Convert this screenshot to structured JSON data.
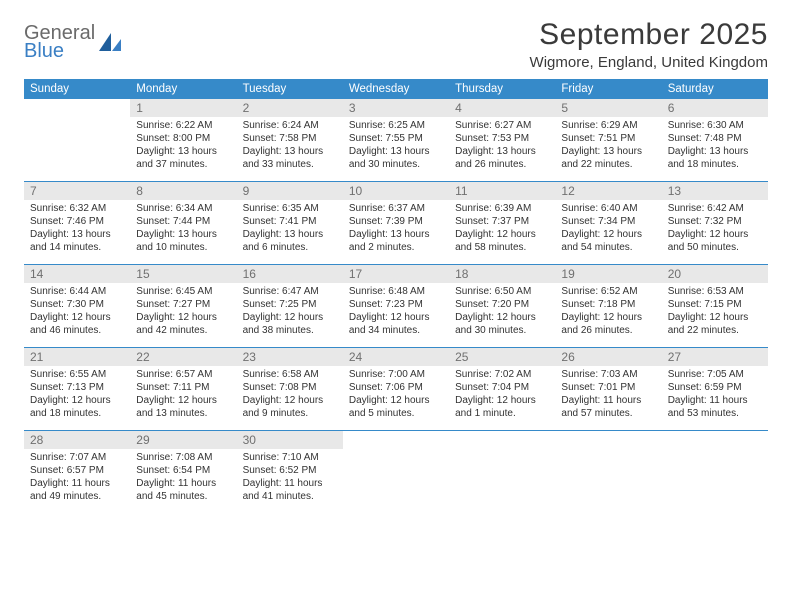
{
  "logo": {
    "line1": "General",
    "line2": "Blue"
  },
  "title": "September 2025",
  "location": "Wigmore, England, United Kingdom",
  "colors": {
    "header_bg": "#368ac9",
    "header_text": "#ffffff",
    "daynum_bg": "#e8e8e8",
    "daynum_text": "#707070",
    "row_border": "#368ac9",
    "body_text": "#333333",
    "logo_gray": "#6a6a6a",
    "logo_blue": "#3a7fc4"
  },
  "weekdays": [
    "Sunday",
    "Monday",
    "Tuesday",
    "Wednesday",
    "Thursday",
    "Friday",
    "Saturday"
  ],
  "weeks": [
    [
      null,
      {
        "n": "1",
        "sr": "Sunrise: 6:22 AM",
        "ss": "Sunset: 8:00 PM",
        "d1": "Daylight: 13 hours",
        "d2": "and 37 minutes."
      },
      {
        "n": "2",
        "sr": "Sunrise: 6:24 AM",
        "ss": "Sunset: 7:58 PM",
        "d1": "Daylight: 13 hours",
        "d2": "and 33 minutes."
      },
      {
        "n": "3",
        "sr": "Sunrise: 6:25 AM",
        "ss": "Sunset: 7:55 PM",
        "d1": "Daylight: 13 hours",
        "d2": "and 30 minutes."
      },
      {
        "n": "4",
        "sr": "Sunrise: 6:27 AM",
        "ss": "Sunset: 7:53 PM",
        "d1": "Daylight: 13 hours",
        "d2": "and 26 minutes."
      },
      {
        "n": "5",
        "sr": "Sunrise: 6:29 AM",
        "ss": "Sunset: 7:51 PM",
        "d1": "Daylight: 13 hours",
        "d2": "and 22 minutes."
      },
      {
        "n": "6",
        "sr": "Sunrise: 6:30 AM",
        "ss": "Sunset: 7:48 PM",
        "d1": "Daylight: 13 hours",
        "d2": "and 18 minutes."
      }
    ],
    [
      {
        "n": "7",
        "sr": "Sunrise: 6:32 AM",
        "ss": "Sunset: 7:46 PM",
        "d1": "Daylight: 13 hours",
        "d2": "and 14 minutes."
      },
      {
        "n": "8",
        "sr": "Sunrise: 6:34 AM",
        "ss": "Sunset: 7:44 PM",
        "d1": "Daylight: 13 hours",
        "d2": "and 10 minutes."
      },
      {
        "n": "9",
        "sr": "Sunrise: 6:35 AM",
        "ss": "Sunset: 7:41 PM",
        "d1": "Daylight: 13 hours",
        "d2": "and 6 minutes."
      },
      {
        "n": "10",
        "sr": "Sunrise: 6:37 AM",
        "ss": "Sunset: 7:39 PM",
        "d1": "Daylight: 13 hours",
        "d2": "and 2 minutes."
      },
      {
        "n": "11",
        "sr": "Sunrise: 6:39 AM",
        "ss": "Sunset: 7:37 PM",
        "d1": "Daylight: 12 hours",
        "d2": "and 58 minutes."
      },
      {
        "n": "12",
        "sr": "Sunrise: 6:40 AM",
        "ss": "Sunset: 7:34 PM",
        "d1": "Daylight: 12 hours",
        "d2": "and 54 minutes."
      },
      {
        "n": "13",
        "sr": "Sunrise: 6:42 AM",
        "ss": "Sunset: 7:32 PM",
        "d1": "Daylight: 12 hours",
        "d2": "and 50 minutes."
      }
    ],
    [
      {
        "n": "14",
        "sr": "Sunrise: 6:44 AM",
        "ss": "Sunset: 7:30 PM",
        "d1": "Daylight: 12 hours",
        "d2": "and 46 minutes."
      },
      {
        "n": "15",
        "sr": "Sunrise: 6:45 AM",
        "ss": "Sunset: 7:27 PM",
        "d1": "Daylight: 12 hours",
        "d2": "and 42 minutes."
      },
      {
        "n": "16",
        "sr": "Sunrise: 6:47 AM",
        "ss": "Sunset: 7:25 PM",
        "d1": "Daylight: 12 hours",
        "d2": "and 38 minutes."
      },
      {
        "n": "17",
        "sr": "Sunrise: 6:48 AM",
        "ss": "Sunset: 7:23 PM",
        "d1": "Daylight: 12 hours",
        "d2": "and 34 minutes."
      },
      {
        "n": "18",
        "sr": "Sunrise: 6:50 AM",
        "ss": "Sunset: 7:20 PM",
        "d1": "Daylight: 12 hours",
        "d2": "and 30 minutes."
      },
      {
        "n": "19",
        "sr": "Sunrise: 6:52 AM",
        "ss": "Sunset: 7:18 PM",
        "d1": "Daylight: 12 hours",
        "d2": "and 26 minutes."
      },
      {
        "n": "20",
        "sr": "Sunrise: 6:53 AM",
        "ss": "Sunset: 7:15 PM",
        "d1": "Daylight: 12 hours",
        "d2": "and 22 minutes."
      }
    ],
    [
      {
        "n": "21",
        "sr": "Sunrise: 6:55 AM",
        "ss": "Sunset: 7:13 PM",
        "d1": "Daylight: 12 hours",
        "d2": "and 18 minutes."
      },
      {
        "n": "22",
        "sr": "Sunrise: 6:57 AM",
        "ss": "Sunset: 7:11 PM",
        "d1": "Daylight: 12 hours",
        "d2": "and 13 minutes."
      },
      {
        "n": "23",
        "sr": "Sunrise: 6:58 AM",
        "ss": "Sunset: 7:08 PM",
        "d1": "Daylight: 12 hours",
        "d2": "and 9 minutes."
      },
      {
        "n": "24",
        "sr": "Sunrise: 7:00 AM",
        "ss": "Sunset: 7:06 PM",
        "d1": "Daylight: 12 hours",
        "d2": "and 5 minutes."
      },
      {
        "n": "25",
        "sr": "Sunrise: 7:02 AM",
        "ss": "Sunset: 7:04 PM",
        "d1": "Daylight: 12 hours",
        "d2": "and 1 minute."
      },
      {
        "n": "26",
        "sr": "Sunrise: 7:03 AM",
        "ss": "Sunset: 7:01 PM",
        "d1": "Daylight: 11 hours",
        "d2": "and 57 minutes."
      },
      {
        "n": "27",
        "sr": "Sunrise: 7:05 AM",
        "ss": "Sunset: 6:59 PM",
        "d1": "Daylight: 11 hours",
        "d2": "and 53 minutes."
      }
    ],
    [
      {
        "n": "28",
        "sr": "Sunrise: 7:07 AM",
        "ss": "Sunset: 6:57 PM",
        "d1": "Daylight: 11 hours",
        "d2": "and 49 minutes."
      },
      {
        "n": "29",
        "sr": "Sunrise: 7:08 AM",
        "ss": "Sunset: 6:54 PM",
        "d1": "Daylight: 11 hours",
        "d2": "and 45 minutes."
      },
      {
        "n": "30",
        "sr": "Sunrise: 7:10 AM",
        "ss": "Sunset: 6:52 PM",
        "d1": "Daylight: 11 hours",
        "d2": "and 41 minutes."
      },
      null,
      null,
      null,
      null
    ]
  ]
}
